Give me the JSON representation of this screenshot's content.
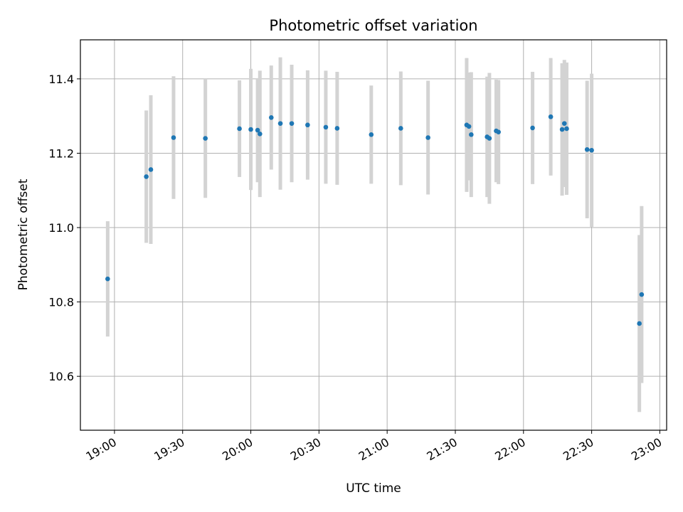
{
  "chart_data": {
    "type": "scatter",
    "title": "Photometric offset variation",
    "xlabel": "UTC time",
    "ylabel": "Photometric offset",
    "x_ticks": [
      "19:00",
      "19:30",
      "20:00",
      "20:30",
      "21:00",
      "21:30",
      "22:00",
      "22:30",
      "23:00"
    ],
    "y_ticks": [
      "10.6",
      "10.8",
      "11.0",
      "11.2",
      "11.4"
    ],
    "xlim": [
      "18:45",
      "23:03"
    ],
    "ylim": [
      10.455,
      11.505
    ],
    "grid": true,
    "point_color": "#1f77b4",
    "errorbar_color": "#d3d3d3",
    "points": [
      {
        "t": "18:57",
        "y": 10.862,
        "err": 0.155
      },
      {
        "t": "19:14",
        "y": 11.137,
        "err": 0.178
      },
      {
        "t": "19:16",
        "y": 11.156,
        "err": 0.2
      },
      {
        "t": "19:26",
        "y": 11.242,
        "err": 0.165
      },
      {
        "t": "19:40",
        "y": 11.24,
        "err": 0.16
      },
      {
        "t": "19:55",
        "y": 11.266,
        "err": 0.13
      },
      {
        "t": "20:00",
        "y": 11.264,
        "err": 0.163
      },
      {
        "t": "20:03",
        "y": 11.262,
        "err": 0.14
      },
      {
        "t": "20:04",
        "y": 11.252,
        "err": 0.17
      },
      {
        "t": "20:09",
        "y": 11.296,
        "err": 0.14
      },
      {
        "t": "20:13",
        "y": 11.28,
        "err": 0.178
      },
      {
        "t": "20:18",
        "y": 11.28,
        "err": 0.158
      },
      {
        "t": "20:25",
        "y": 11.276,
        "err": 0.147
      },
      {
        "t": "20:33",
        "y": 11.27,
        "err": 0.152
      },
      {
        "t": "20:38",
        "y": 11.267,
        "err": 0.152
      },
      {
        "t": "20:53",
        "y": 11.25,
        "err": 0.132
      },
      {
        "t": "21:06",
        "y": 11.267,
        "err": 0.153
      },
      {
        "t": "21:18",
        "y": 11.242,
        "err": 0.153
      },
      {
        "t": "21:35",
        "y": 11.276,
        "err": 0.18
      },
      {
        "t": "21:36",
        "y": 11.272,
        "err": 0.145
      },
      {
        "t": "21:37",
        "y": 11.25,
        "err": 0.168
      },
      {
        "t": "21:44",
        "y": 11.244,
        "err": 0.162
      },
      {
        "t": "21:45",
        "y": 11.24,
        "err": 0.176
      },
      {
        "t": "21:48",
        "y": 11.26,
        "err": 0.138
      },
      {
        "t": "21:49",
        "y": 11.257,
        "err": 0.14
      },
      {
        "t": "22:04",
        "y": 11.268,
        "err": 0.151
      },
      {
        "t": "22:12",
        "y": 11.298,
        "err": 0.158
      },
      {
        "t": "22:17",
        "y": 11.264,
        "err": 0.178
      },
      {
        "t": "22:18",
        "y": 11.28,
        "err": 0.171
      },
      {
        "t": "22:19",
        "y": 11.266,
        "err": 0.178
      },
      {
        "t": "22:28",
        "y": 11.21,
        "err": 0.185
      },
      {
        "t": "22:30",
        "y": 11.208,
        "err": 0.206
      },
      {
        "t": "22:51",
        "y": 10.742,
        "err": 0.238
      },
      {
        "t": "22:52",
        "y": 10.82,
        "err": 0.238
      }
    ]
  }
}
